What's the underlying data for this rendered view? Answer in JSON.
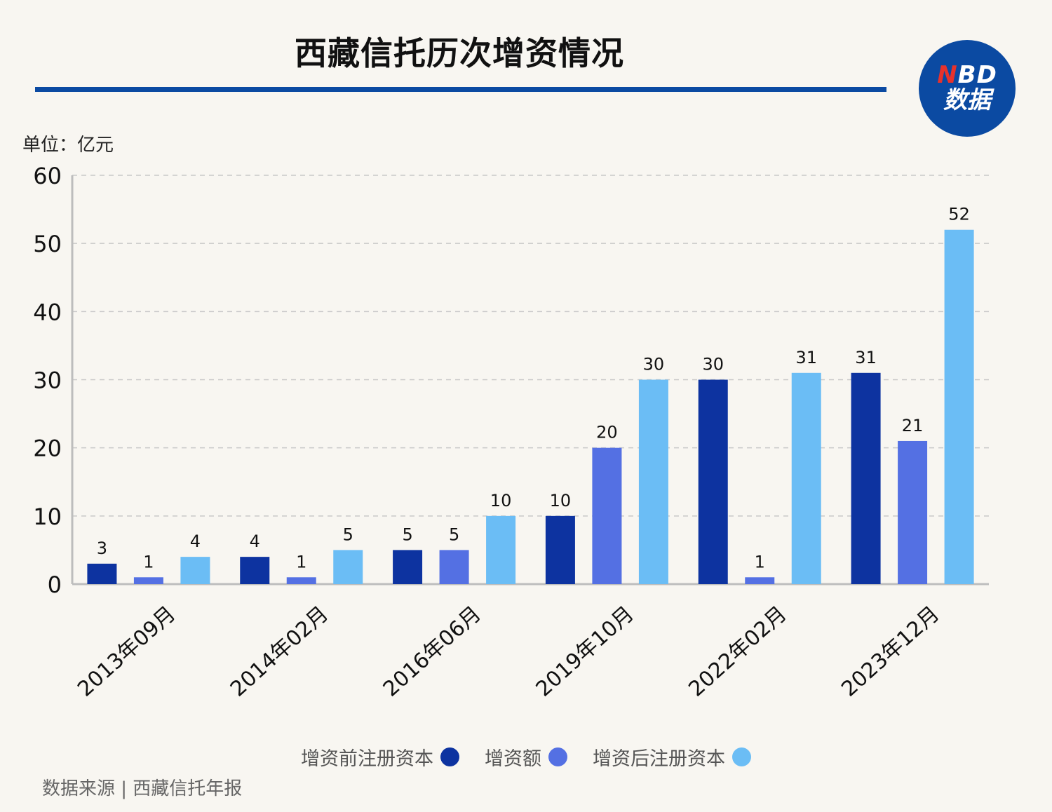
{
  "header": {
    "title": "西藏信托历次增资情况",
    "logo_top": "BD",
    "logo_top_accent": "N",
    "logo_bottom": "数据"
  },
  "unit_label": "单位：亿元",
  "source": "数据来源 | 西藏信托年报",
  "colors": {
    "before": "#0d33a0",
    "increase": "#5470e3",
    "after": "#6bbdf5",
    "grid": "#c8c8c8",
    "axis": "#bdbdbd",
    "accent": "#0b4aa2"
  },
  "chart_data": {
    "type": "bar",
    "title": "西藏信托历次增资情况",
    "ylabel": "单位：亿元",
    "ylim": [
      0,
      60
    ],
    "yticks": [
      0,
      10,
      20,
      30,
      40,
      50,
      60
    ],
    "grid": true,
    "legend_position": "bottom",
    "categories": [
      "2013年09月",
      "2014年02月",
      "2016年06月",
      "2019年10月",
      "2022年02月",
      "2023年12月"
    ],
    "series": [
      {
        "name": "增资前注册资本",
        "color": "#0d33a0",
        "values": [
          3,
          4,
          5,
          10,
          30,
          31
        ]
      },
      {
        "name": "增资额",
        "color": "#5470e3",
        "values": [
          1,
          1,
          5,
          20,
          1,
          21
        ]
      },
      {
        "name": "增资后注册资本",
        "color": "#6bbdf5",
        "values": [
          4,
          5,
          10,
          30,
          31,
          52
        ]
      }
    ]
  }
}
